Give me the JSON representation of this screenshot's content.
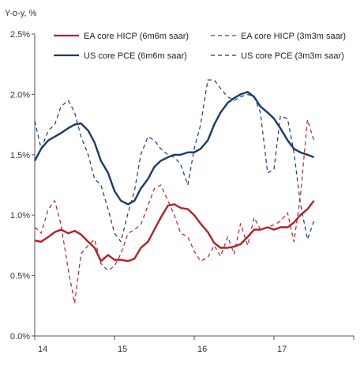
{
  "chart_data": {
    "type": "line",
    "title": "",
    "ylabel": "Y-o-y, %",
    "xlabel": "",
    "xlim": [
      2014,
      2018
    ],
    "ylim": [
      0,
      2.5
    ],
    "x_ticks": [
      14,
      15,
      16,
      17
    ],
    "x_tick_labels": [
      "14",
      "15",
      "16",
      "17"
    ],
    "y_ticks": [
      0,
      0.5,
      1.0,
      1.5,
      2.0,
      2.5
    ],
    "y_tick_labels": [
      "0.0%",
      "0.5%",
      "1.0%",
      "1.5%",
      "2.0%",
      "2.5%"
    ],
    "grid": false,
    "legend_position": "top",
    "colors": {
      "ea": "#b51f24",
      "us": "#1a3a6b"
    },
    "series": [
      {
        "name": "EA core HICP (6m6m saar)",
        "color": "#b51f24",
        "style": "solid",
        "x": [
          2014.0,
          2014.08,
          2014.17,
          2014.25,
          2014.33,
          2014.42,
          2014.5,
          2014.58,
          2014.67,
          2014.75,
          2014.83,
          2014.92,
          2015.0,
          2015.08,
          2015.17,
          2015.25,
          2015.33,
          2015.42,
          2015.5,
          2015.58,
          2015.67,
          2015.75,
          2015.83,
          2015.92,
          2016.0,
          2016.08,
          2016.17,
          2016.25,
          2016.33,
          2016.42,
          2016.5,
          2016.58,
          2016.67,
          2016.75,
          2016.83,
          2016.92,
          2017.0,
          2017.08,
          2017.17,
          2017.25,
          2017.33,
          2017.42,
          2017.5
        ],
        "y": [
          0.79,
          0.78,
          0.82,
          0.86,
          0.88,
          0.85,
          0.87,
          0.84,
          0.78,
          0.73,
          0.62,
          0.67,
          0.63,
          0.63,
          0.62,
          0.64,
          0.73,
          0.78,
          0.88,
          0.98,
          1.08,
          1.09,
          1.06,
          1.05,
          1.0,
          0.93,
          0.86,
          0.77,
          0.73,
          0.73,
          0.74,
          0.76,
          0.82,
          0.88,
          0.88,
          0.9,
          0.88,
          0.9,
          0.9,
          0.94,
          1.0,
          1.05,
          1.12
        ]
      },
      {
        "name": "EA core HICP (3m3m saar)",
        "color": "#b51f24",
        "style": "dashed",
        "x": [
          2014.0,
          2014.08,
          2014.17,
          2014.25,
          2014.33,
          2014.42,
          2014.5,
          2014.58,
          2014.67,
          2014.75,
          2014.83,
          2014.92,
          2015.0,
          2015.08,
          2015.17,
          2015.25,
          2015.33,
          2015.42,
          2015.5,
          2015.58,
          2015.67,
          2015.75,
          2015.83,
          2015.92,
          2016.0,
          2016.08,
          2016.17,
          2016.25,
          2016.33,
          2016.42,
          2016.5,
          2016.58,
          2016.67,
          2016.75,
          2016.83,
          2016.92,
          2017.0,
          2017.08,
          2017.17,
          2017.25,
          2017.33,
          2017.42,
          2017.5
        ],
        "y": [
          0.9,
          0.85,
          1.05,
          1.12,
          0.92,
          0.55,
          0.27,
          0.68,
          0.75,
          0.8,
          0.6,
          0.54,
          0.58,
          0.68,
          0.85,
          0.88,
          0.92,
          1.08,
          1.22,
          1.25,
          1.12,
          1.0,
          0.85,
          0.82,
          0.7,
          0.62,
          0.65,
          0.75,
          0.66,
          0.82,
          0.68,
          0.93,
          0.75,
          0.98,
          0.88,
          0.9,
          0.92,
          0.95,
          1.02,
          0.78,
          1.15,
          1.79,
          1.62
        ]
      },
      {
        "name": "US core PCE (6m6m saar)",
        "color": "#1a3a6b",
        "style": "solid",
        "x": [
          2014.0,
          2014.08,
          2014.17,
          2014.25,
          2014.33,
          2014.42,
          2014.5,
          2014.58,
          2014.67,
          2014.75,
          2014.83,
          2014.92,
          2015.0,
          2015.08,
          2015.17,
          2015.25,
          2015.33,
          2015.42,
          2015.5,
          2015.58,
          2015.67,
          2015.75,
          2015.83,
          2015.92,
          2016.0,
          2016.08,
          2016.17,
          2016.25,
          2016.33,
          2016.42,
          2016.5,
          2016.58,
          2016.67,
          2016.75,
          2016.83,
          2016.92,
          2017.0,
          2017.08,
          2017.17,
          2017.25,
          2017.33,
          2017.42,
          2017.5
        ],
        "y": [
          1.45,
          1.55,
          1.62,
          1.65,
          1.68,
          1.72,
          1.75,
          1.76,
          1.7,
          1.6,
          1.45,
          1.35,
          1.2,
          1.12,
          1.09,
          1.12,
          1.22,
          1.3,
          1.4,
          1.45,
          1.48,
          1.5,
          1.5,
          1.52,
          1.52,
          1.55,
          1.62,
          1.75,
          1.85,
          1.93,
          1.97,
          2.0,
          2.02,
          1.98,
          1.9,
          1.85,
          1.8,
          1.72,
          1.62,
          1.55,
          1.52,
          1.5,
          1.48
        ]
      },
      {
        "name": "US core PCE (3m3m saar)",
        "color": "#1a3a6b",
        "style": "dashed",
        "x": [
          2014.0,
          2014.08,
          2014.17,
          2014.25,
          2014.33,
          2014.42,
          2014.5,
          2014.58,
          2014.67,
          2014.75,
          2014.83,
          2014.92,
          2015.0,
          2015.08,
          2015.17,
          2015.25,
          2015.33,
          2015.42,
          2015.5,
          2015.58,
          2015.67,
          2015.75,
          2015.83,
          2015.92,
          2016.0,
          2016.08,
          2016.17,
          2016.25,
          2016.33,
          2016.42,
          2016.5,
          2016.58,
          2016.67,
          2016.75,
          2016.83,
          2016.92,
          2017.0,
          2017.08,
          2017.17,
          2017.25,
          2017.33,
          2017.42,
          2017.5
        ],
        "y": [
          1.78,
          1.55,
          1.7,
          1.75,
          1.9,
          1.95,
          1.85,
          1.65,
          1.5,
          1.3,
          1.25,
          1.05,
          0.85,
          0.78,
          1.02,
          1.2,
          1.5,
          1.65,
          1.62,
          1.55,
          1.5,
          1.48,
          1.42,
          1.25,
          1.55,
          1.75,
          2.12,
          2.12,
          2.05,
          1.98,
          1.95,
          1.98,
          2.0,
          1.98,
          1.85,
          1.35,
          1.38,
          1.82,
          1.8,
          1.52,
          1.1,
          0.8,
          0.95
        ]
      }
    ]
  }
}
